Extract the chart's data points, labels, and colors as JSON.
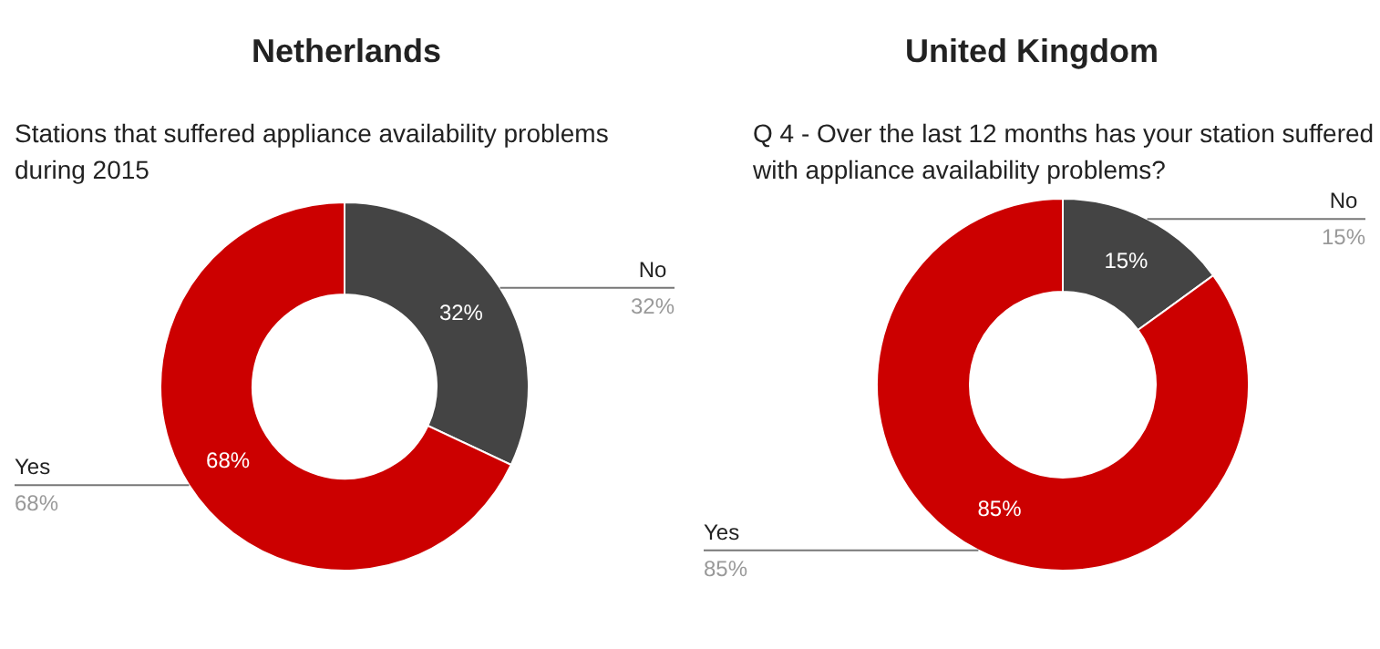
{
  "chart_data": [
    {
      "type": "donut",
      "title": "Netherlands",
      "subtitle": "Stations that suffered appliance availability problems during 2015",
      "categories": [
        "No",
        "Yes"
      ],
      "values": [
        32,
        68
      ],
      "value_labels": [
        "32%",
        "68%"
      ],
      "colors": [
        "#444444",
        "#cc0000"
      ]
    },
    {
      "type": "donut",
      "title": "United Kingdom",
      "subtitle": "Q 4 - Over the last 12 months has your station suffered with appliance availability problems?",
      "categories": [
        "No",
        "Yes"
      ],
      "values": [
        15,
        85
      ],
      "value_labels": [
        "15%",
        "85%"
      ],
      "colors": [
        "#444444",
        "#cc0000"
      ]
    }
  ]
}
